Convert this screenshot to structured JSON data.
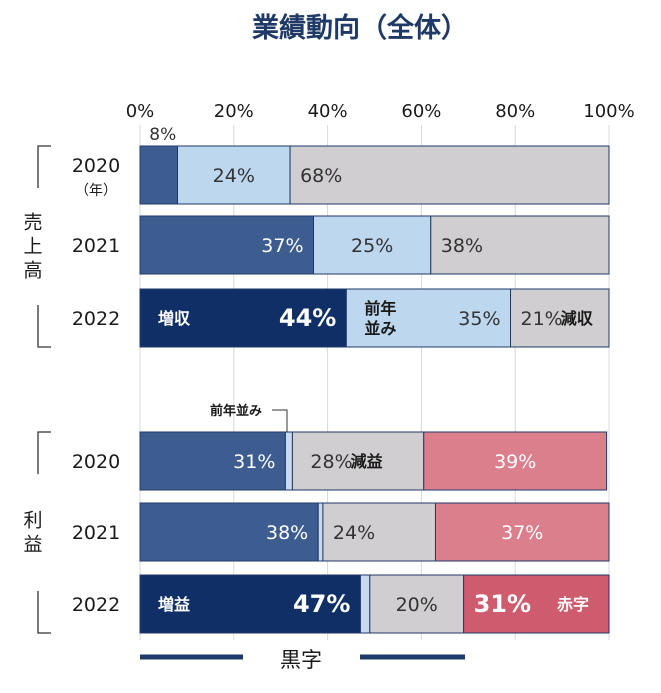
{
  "title": "業績動向（全体）",
  "colors": {
    "title": "#1f3a68",
    "positive_2022": "#0f2f66",
    "positive": "#3d5d91",
    "flat": "#bdd7ee",
    "negative_gray": "#d0ced0",
    "loss": "#dc7f8d",
    "loss_2022": "#cf5b6e",
    "thin_divider": "#c9d9ee",
    "legend_line": "#1f3a68"
  },
  "legend": {
    "label": "黒字"
  },
  "chart_data": {
    "type": "bar",
    "orientation": "horizontal",
    "stacked": true,
    "xlim": [
      0,
      100
    ],
    "x_ticks": [
      "0%",
      "20%",
      "40%",
      "60%",
      "80%",
      "100%"
    ],
    "groups": [
      {
        "name": "売上高",
        "rows": [
          {
            "label": "2020",
            "sublabel": "（年）",
            "segments": [
              {
                "value": 8,
                "color": "positive",
                "label": "8%",
                "label_pos": "above"
              },
              {
                "value": 24,
                "color": "flat",
                "label": "24%"
              },
              {
                "value": 68,
                "color": "negative_gray",
                "label": "68%",
                "label_pos": "left"
              }
            ]
          },
          {
            "label": "2021",
            "segments": [
              {
                "value": 37,
                "color": "positive",
                "label": "37%",
                "label_pos": "right",
                "text": "light"
              },
              {
                "value": 25,
                "color": "flat",
                "label": "25%"
              },
              {
                "value": 38,
                "color": "negative_gray",
                "label": "38%",
                "label_pos": "left"
              }
            ]
          },
          {
            "label": "2022",
            "segments": [
              {
                "value": 44,
                "color": "positive_2022",
                "label": "44%",
                "label_pos": "right",
                "text": "light",
                "big": true,
                "tag": "増収"
              },
              {
                "value": 35,
                "color": "flat",
                "label": "35%",
                "label_pos": "right",
                "tag": "前年\n並み"
              },
              {
                "value": 21,
                "color": "negative_gray",
                "label": "21%",
                "label_pos": "left",
                "suffix": "減収"
              }
            ]
          }
        ]
      },
      {
        "name": "利益",
        "rows": [
          {
            "label": "2020",
            "segments": [
              {
                "value": 31,
                "color": "positive",
                "label": "31%",
                "label_pos": "right",
                "text": "light"
              },
              {
                "value": 1.5,
                "color": "thin_divider",
                "label": ""
              },
              {
                "value": 28,
                "color": "negative_gray",
                "label": "28%",
                "suffix": "減益"
              },
              {
                "value": 39,
                "color": "loss",
                "label": "39%",
                "text": "light"
              }
            ]
          },
          {
            "label": "2021",
            "segments": [
              {
                "value": 38,
                "color": "positive",
                "label": "38%",
                "label_pos": "right",
                "text": "light"
              },
              {
                "value": 1,
                "color": "thin_divider",
                "label": ""
              },
              {
                "value": 24,
                "color": "negative_gray",
                "label": "24%",
                "label_pos": "left"
              },
              {
                "value": 37,
                "color": "loss",
                "label": "37%",
                "text": "light"
              }
            ]
          },
          {
            "label": "2022",
            "segments": [
              {
                "value": 47,
                "color": "positive_2022",
                "label": "47%",
                "label_pos": "right",
                "text": "light",
                "big": true,
                "tag": "増益"
              },
              {
                "value": 2,
                "color": "thin_divider",
                "label": ""
              },
              {
                "value": 20,
                "color": "negative_gray",
                "label": "20%"
              },
              {
                "value": 31,
                "color": "loss_2022",
                "label": "31%",
                "label_pos": "left",
                "text": "light",
                "big": true,
                "suffix": "赤字"
              }
            ]
          }
        ]
      }
    ],
    "annotation": {
      "text": "前年並み",
      "target": "利益 2020 thin_divider"
    }
  }
}
